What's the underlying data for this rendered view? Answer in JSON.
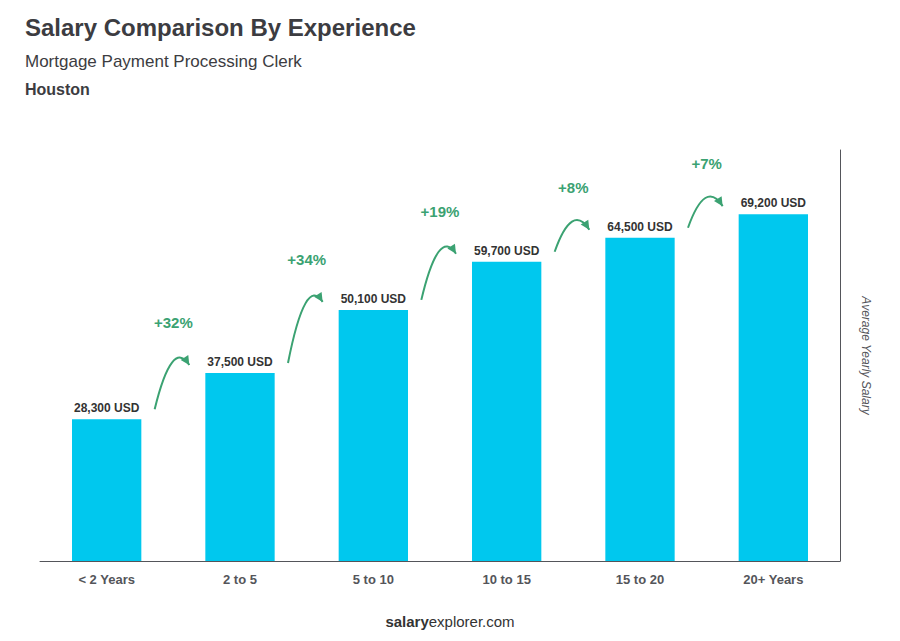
{
  "chart_data": {
    "type": "bar",
    "title": "Salary Comparison By Experience",
    "subtitle": [
      "Mortgage Payment Processing Clerk",
      "Houston"
    ],
    "footer": [
      "salary",
      "explorer.com"
    ],
    "ylabel": "Average Yearly Salary",
    "categories": [
      "< 2 Years",
      "2 to 5",
      "5 to 10",
      "10 to 15",
      "15 to 20",
      "20+ Years"
    ],
    "values": [
      28300,
      37500,
      50100,
      59700,
      64500,
      69200
    ],
    "value_labels": [
      "28,300 USD",
      "37,500 USD",
      "50,100 USD",
      "59,700 USD",
      "64,500 USD",
      "69,200 USD"
    ],
    "data_labels": true,
    "color": "#00C8EE",
    "annotations": [
      {
        "text": "+32%",
        "from": "< 2 Years",
        "to": "2 to 5"
      },
      {
        "text": "+34%",
        "from": "2 to 5",
        "to": "5 to 10"
      },
      {
        "text": "+19%",
        "from": "5 to 10",
        "to": "10 to 15"
      },
      {
        "text": "+8%",
        "from": "10 to 15",
        "to": "15 to 20"
      },
      {
        "text": "+7%",
        "from": "15 to 20",
        "to": "20+ Years"
      }
    ],
    "ylim": [
      0,
      82000
    ],
    "tick_labels": "x",
    "grid": false
  }
}
